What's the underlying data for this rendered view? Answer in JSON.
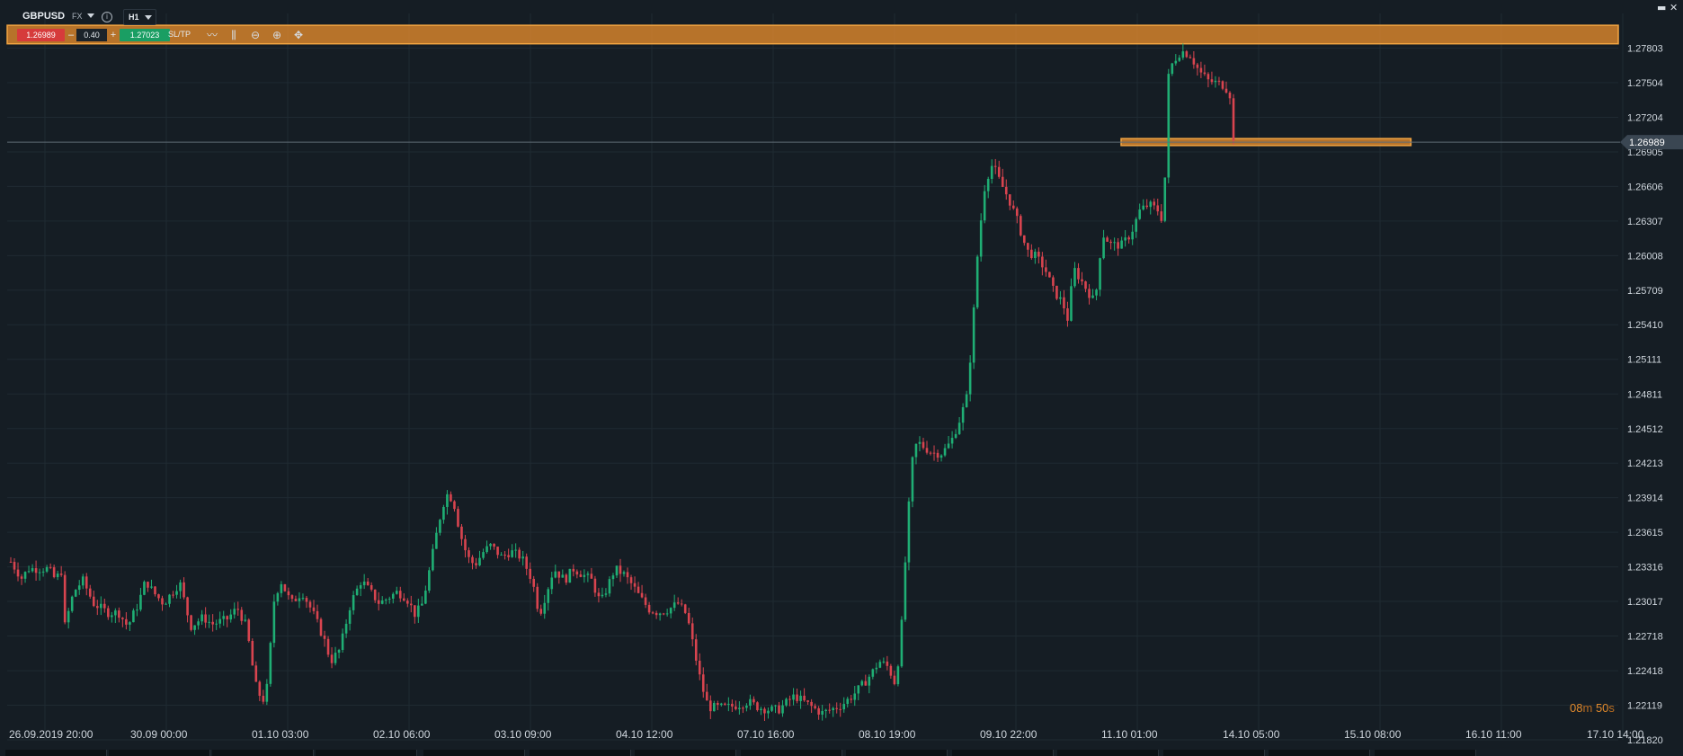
{
  "header": {
    "symbol": "GBPUSD",
    "market": "FX",
    "timeframe": "H1",
    "window_controls": [
      "▬",
      "✕"
    ]
  },
  "trade_panel": {
    "sell_price": "1.26989",
    "minus": "–",
    "quantity": "0.40",
    "plus": "+",
    "buy_price": "1.27023",
    "sltp_label": "SL/TP"
  },
  "toolbar_icons": [
    "line-chart-icon",
    "indicators-icon",
    "zoom-out-icon",
    "zoom-in-icon",
    "move-icon"
  ],
  "countdown": {
    "minutes": "08",
    "m": "m",
    "seconds": "50",
    "s": "s"
  },
  "colors": {
    "background": "#151d24",
    "grid": "#1f2a32",
    "up": "#1fae74",
    "down": "#d8444f",
    "zone": "#e0892c",
    "current_price_bg": "#3a4652"
  },
  "chart_data": {
    "type": "candlestick",
    "symbol": "GBPUSD",
    "interval": "H1",
    "ylim": [
      1.2182,
      1.28102
    ],
    "y_ticks": [
      "1.27803",
      "1.27504",
      "1.27204",
      "1.26905",
      "1.26606",
      "1.26307",
      "1.26008",
      "1.25709",
      "1.25410",
      "1.25111",
      "1.24811",
      "1.24512",
      "1.24213",
      "1.23914",
      "1.23615",
      "1.23316",
      "1.23017",
      "1.22718",
      "1.22418",
      "1.22119",
      "1.21820"
    ],
    "x_ticks": [
      "26.09.2019 20:00",
      "30.09 00:00",
      "01.10 03:00",
      "02.10 06:00",
      "03.10 09:00",
      "04.10 12:00",
      "07.10 16:00",
      "08.10 19:00",
      "09.10 22:00",
      "11.10 01:00",
      "14.10 05:00",
      "15.10 08:00",
      "16.10 11:00",
      "17.10 14:00"
    ],
    "current_price": "1.26989",
    "zones": [
      {
        "from": 1.2784,
        "to": 1.28,
        "x_from": 0.0,
        "x_to": 1.0
      },
      {
        "from": 1.2696,
        "to": 1.2702,
        "x_from": 0.6914,
        "x_to": 0.8713
      }
    ],
    "path_points": [
      [
        0,
        1.2336
      ],
      [
        12,
        1.2322
      ],
      [
        20,
        1.233
      ],
      [
        32,
        1.233
      ],
      [
        42,
        1.233
      ],
      [
        50,
        1.232
      ],
      [
        56,
        1.233
      ],
      [
        60,
        1.228
      ],
      [
        70,
        1.231
      ],
      [
        80,
        1.232
      ],
      [
        92,
        1.23
      ],
      [
        108,
        1.2292
      ],
      [
        120,
        1.2292
      ],
      [
        130,
        1.228
      ],
      [
        142,
        1.23
      ],
      [
        150,
        1.232
      ],
      [
        158,
        1.231
      ],
      [
        170,
        1.23
      ],
      [
        180,
        1.231
      ],
      [
        188,
        1.2318
      ],
      [
        200,
        1.228
      ],
      [
        214,
        1.2288
      ],
      [
        224,
        1.2282
      ],
      [
        240,
        1.2286
      ],
      [
        252,
        1.2296
      ],
      [
        262,
        1.228
      ],
      [
        272,
        1.223
      ],
      [
        280,
        1.2215
      ],
      [
        286,
        1.223
      ],
      [
        292,
        1.23
      ],
      [
        300,
        1.232
      ],
      [
        312,
        1.23
      ],
      [
        324,
        1.231
      ],
      [
        336,
        1.2292
      ],
      [
        348,
        1.227
      ],
      [
        356,
        1.225
      ],
      [
        366,
        1.226
      ],
      [
        378,
        1.23
      ],
      [
        390,
        1.232
      ],
      [
        400,
        1.231
      ],
      [
        410,
        1.23
      ],
      [
        420,
        1.2305
      ],
      [
        430,
        1.231
      ],
      [
        440,
        1.2305
      ],
      [
        450,
        1.229
      ],
      [
        458,
        1.23
      ],
      [
        466,
        1.233
      ],
      [
        476,
        1.237
      ],
      [
        484,
        1.2395
      ],
      [
        492,
        1.239
      ],
      [
        500,
        1.236
      ],
      [
        508,
        1.234
      ],
      [
        516,
        1.2333
      ],
      [
        526,
        1.2345
      ],
      [
        534,
        1.235
      ],
      [
        546,
        1.234
      ],
      [
        556,
        1.2345
      ],
      [
        568,
        1.234
      ],
      [
        580,
        1.232
      ],
      [
        588,
        1.229
      ],
      [
        596,
        1.231
      ],
      [
        604,
        1.233
      ],
      [
        616,
        1.232
      ],
      [
        626,
        1.233
      ],
      [
        636,
        1.2325
      ],
      [
        646,
        1.232
      ],
      [
        656,
        1.23
      ],
      [
        664,
        1.2315
      ],
      [
        672,
        1.233
      ],
      [
        682,
        1.2325
      ],
      [
        692,
        1.2315
      ],
      [
        700,
        1.2305
      ],
      [
        710,
        1.2295
      ],
      [
        720,
        1.2292
      ],
      [
        732,
        1.2295
      ],
      [
        742,
        1.23
      ],
      [
        752,
        1.229
      ],
      [
        760,
        1.226
      ],
      [
        768,
        1.223
      ],
      [
        776,
        1.221
      ],
      [
        784,
        1.221
      ],
      [
        796,
        1.221
      ],
      [
        808,
        1.2212
      ],
      [
        820,
        1.2215
      ],
      [
        832,
        1.221
      ],
      [
        844,
        1.2208
      ],
      [
        854,
        1.2208
      ],
      [
        864,
        1.2215
      ],
      [
        872,
        1.222
      ],
      [
        882,
        1.2215
      ],
      [
        892,
        1.221
      ],
      [
        902,
        1.2205
      ],
      [
        912,
        1.2208
      ],
      [
        924,
        1.2212
      ],
      [
        936,
        1.222
      ],
      [
        948,
        1.223
      ],
      [
        958,
        1.224
      ],
      [
        966,
        1.225
      ],
      [
        976,
        1.2245
      ],
      [
        984,
        1.223
      ],
      [
        990,
        1.227
      ],
      [
        996,
        1.235
      ],
      [
        1002,
        1.242
      ],
      [
        1008,
        1.244
      ],
      [
        1016,
        1.2435
      ],
      [
        1026,
        1.243
      ],
      [
        1036,
        1.243
      ],
      [
        1046,
        1.244
      ],
      [
        1056,
        1.246
      ],
      [
        1064,
        1.248
      ],
      [
        1070,
        1.254
      ],
      [
        1076,
        1.261
      ],
      [
        1084,
        1.2665
      ],
      [
        1092,
        1.268
      ],
      [
        1100,
        1.2665
      ],
      [
        1110,
        1.265
      ],
      [
        1120,
        1.263
      ],
      [
        1130,
        1.2605
      ],
      [
        1140,
        1.26
      ],
      [
        1150,
        1.259
      ],
      [
        1160,
        1.257
      ],
      [
        1170,
        1.256
      ],
      [
        1176,
        1.2545
      ],
      [
        1182,
        1.259
      ],
      [
        1190,
        1.258
      ],
      [
        1198,
        1.257
      ],
      [
        1206,
        1.256
      ],
      [
        1214,
        1.262
      ],
      [
        1224,
        1.261
      ],
      [
        1236,
        1.261
      ],
      [
        1246,
        1.262
      ],
      [
        1256,
        1.264
      ],
      [
        1266,
        1.2645
      ],
      [
        1276,
        1.264
      ],
      [
        1282,
        1.263
      ],
      [
        1288,
        1.276
      ],
      [
        1294,
        1.277
      ],
      [
        1302,
        1.2778
      ],
      [
        1312,
        1.2774
      ],
      [
        1322,
        1.276
      ],
      [
        1332,
        1.2752
      ],
      [
        1342,
        1.275
      ],
      [
        1350,
        1.2748
      ],
      [
        1356,
        1.274
      ],
      [
        1360,
        1.2699
      ]
    ]
  }
}
